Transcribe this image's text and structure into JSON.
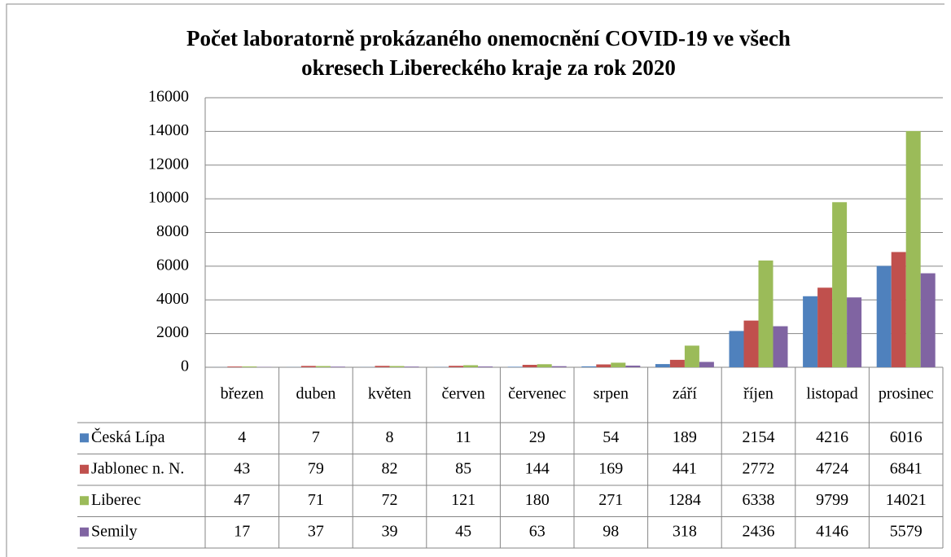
{
  "chart_data": {
    "type": "bar",
    "title": [
      "Počet laboratorně prokázaného onemocnění COVID-19 ve všech",
      "okresech Libereckého kraje za rok 2020"
    ],
    "categories": [
      "březen",
      "duben",
      "květen",
      "červen",
      "červenec",
      "srpen",
      "září",
      "říjen",
      "listopad",
      "prosinec"
    ],
    "series": [
      {
        "name": "Česká Lípa",
        "color": "#4f81bd",
        "values": [
          4,
          7,
          8,
          11,
          29,
          54,
          189,
          2154,
          4216,
          6016
        ]
      },
      {
        "name": "Jablonec n. N.",
        "color": "#c0504d",
        "values": [
          43,
          79,
          82,
          85,
          144,
          169,
          441,
          2772,
          4724,
          6841
        ]
      },
      {
        "name": "Liberec",
        "color": "#9bbb59",
        "values": [
          47,
          71,
          72,
          121,
          180,
          271,
          1284,
          6338,
          9799,
          14021
        ]
      },
      {
        "name": "Semily",
        "color": "#8064a2",
        "values": [
          17,
          37,
          39,
          45,
          63,
          98,
          318,
          2436,
          4146,
          5579
        ]
      }
    ],
    "ylim": [
      0,
      16000
    ],
    "yticks": [
      0,
      2000,
      4000,
      6000,
      8000,
      10000,
      12000,
      14000,
      16000
    ],
    "grid": true
  }
}
